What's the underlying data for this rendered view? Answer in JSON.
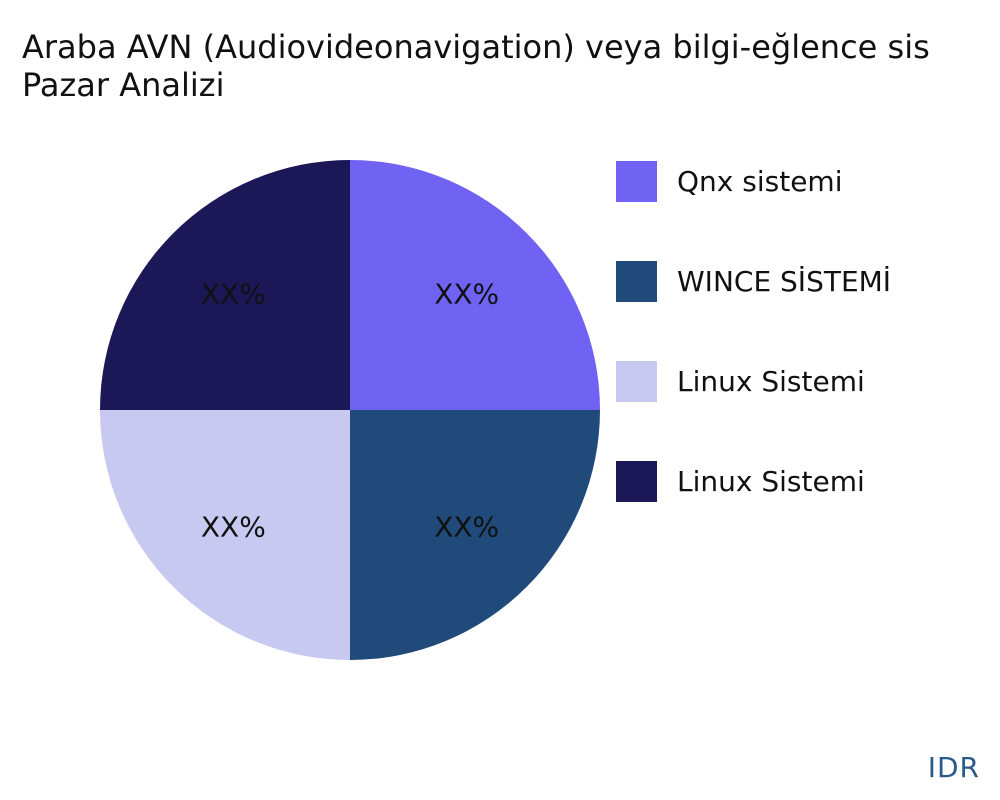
{
  "title_lines": [
    "Araba AVN (Audiovideonavigation) veya bilgi-eğlence sis",
    "Pazar Analizi"
  ],
  "brand": "IDR",
  "chart_data": {
    "type": "pie",
    "title": "Araba AVN (Audiovideonavigation) veya bilgi-eğlence sis Pazar Analizi",
    "slices": [
      {
        "label": "Qnx sistemi",
        "value": 25,
        "display": "XX%",
        "color": "#7063f4"
      },
      {
        "label": "WINCE SİSTEMİ",
        "value": 25,
        "display": "XX%",
        "color": "#1f4a7a"
      },
      {
        "label": "Linux Sistemi",
        "value": 25,
        "display": "XX%",
        "color": "#c8c9f0"
      },
      {
        "label": "Linux Sistemi",
        "value": 25,
        "display": "XX%",
        "color": "#1c1757"
      }
    ],
    "legend_position": "right"
  }
}
